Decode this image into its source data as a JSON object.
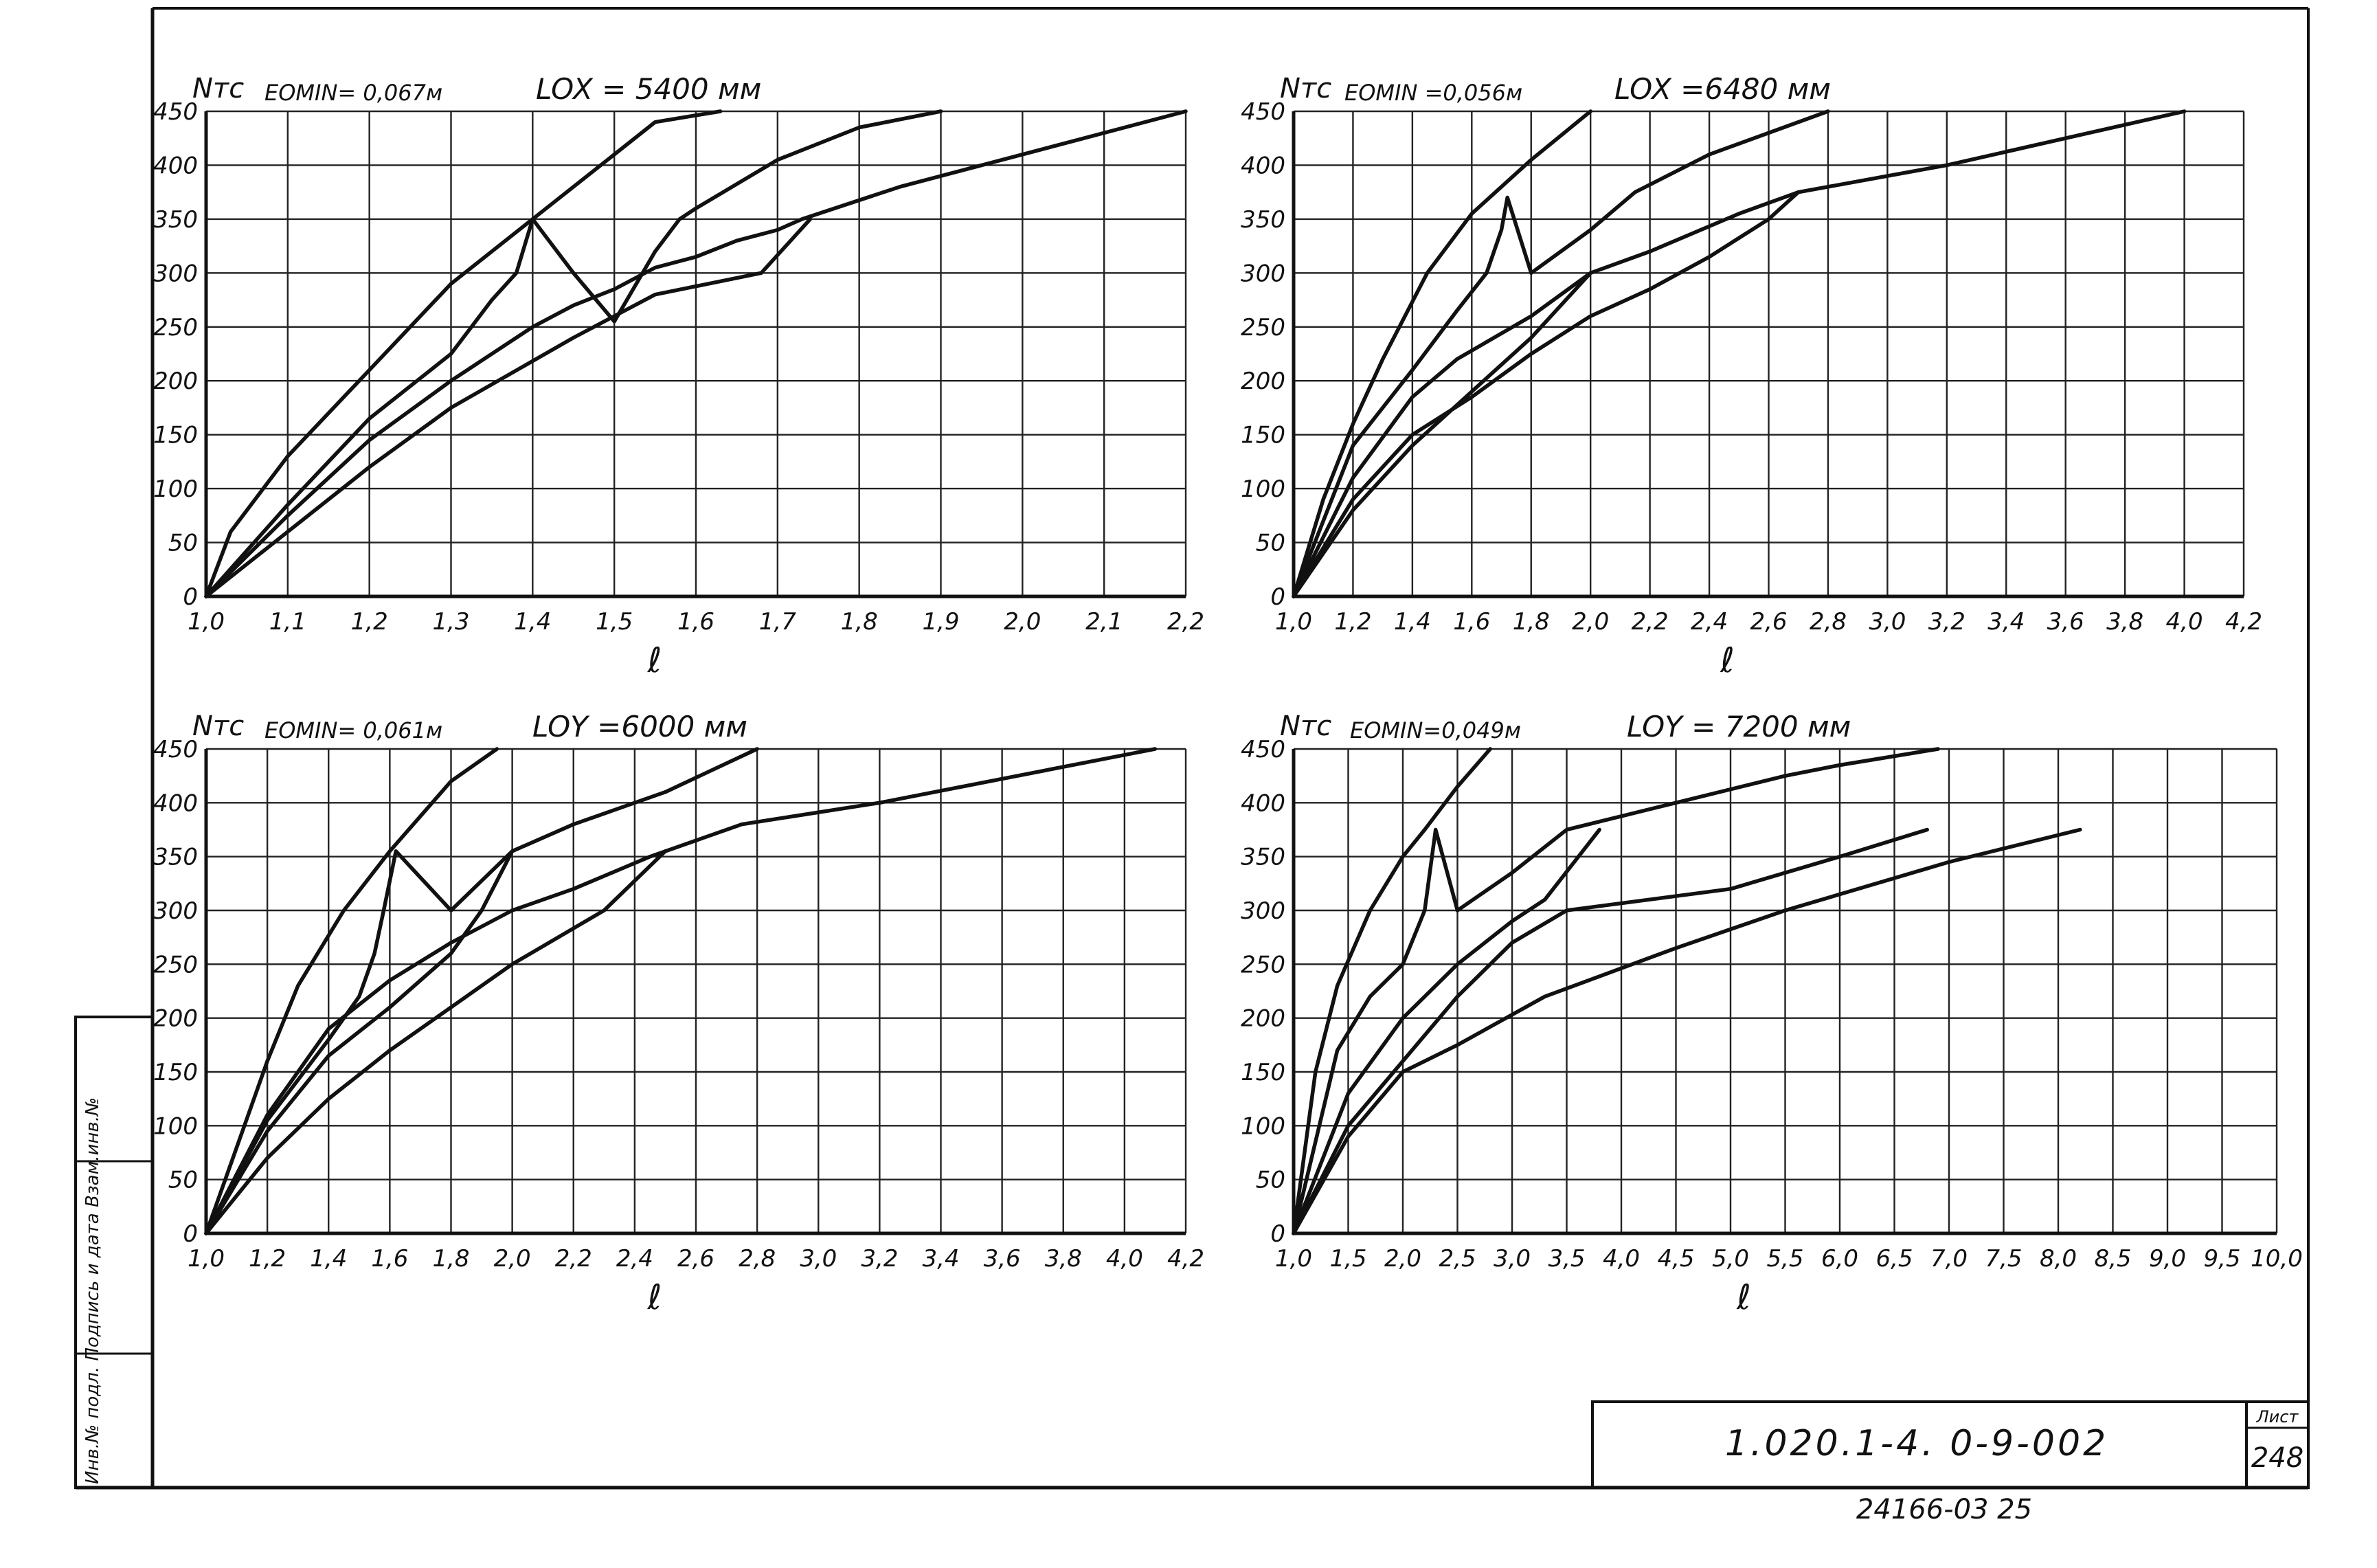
{
  "sheet": {
    "designation": "1.020.1-4.  0-9-002",
    "sheet_label": "Лист",
    "sheet_number": "248",
    "footer_number": "24166-03   25",
    "side_stamp": "Инв.№ подл.  Подпись и дата  Взам.инв.№"
  },
  "chart_data": [
    {
      "type": "line",
      "ylabel": "Nтс",
      "xlabel": "ℓ",
      "eomin": "EOMIN= 0,067м",
      "length": "LOX = 5400 мм",
      "x_ticks": [
        "1,0",
        "1,1",
        "1,2",
        "1,3",
        "1,4",
        "1,5",
        "1,6",
        "1,7",
        "1,8",
        "1,9",
        "2,0",
        "2,1",
        "2,2"
      ],
      "y_ticks": [
        "0",
        "50",
        "100",
        "150",
        "200",
        "250",
        "300",
        "350",
        "400",
        "450"
      ],
      "xlim": [
        1.0,
        2.2
      ],
      "ylim": [
        0,
        450
      ],
      "grid": true,
      "series": [
        {
          "x": [
            1.0,
            1.03,
            1.1,
            1.2,
            1.3,
            1.4,
            1.5,
            1.55,
            1.63
          ],
          "y": [
            0,
            60,
            130,
            210,
            290,
            350,
            410,
            440,
            450
          ]
        },
        {
          "x": [
            1.0,
            1.1,
            1.2,
            1.3,
            1.35,
            1.38,
            1.4,
            1.45,
            1.5,
            1.55,
            1.58,
            1.6,
            1.7,
            1.8,
            1.9
          ],
          "y": [
            0,
            85,
            165,
            225,
            275,
            300,
            350,
            300,
            255,
            320,
            350,
            360,
            405,
            435,
            450
          ]
        },
        {
          "x": [
            1.0,
            1.1,
            1.2,
            1.3,
            1.4,
            1.45,
            1.5,
            1.55,
            1.6,
            1.65,
            1.7,
            1.73,
            1.75,
            1.85,
            2.0,
            2.2
          ],
          "y": [
            0,
            75,
            145,
            200,
            250,
            270,
            285,
            305,
            315,
            330,
            340,
            350,
            355,
            380,
            410,
            450
          ]
        },
        {
          "x": [
            1.0,
            1.1,
            1.2,
            1.3,
            1.45,
            1.55,
            1.68,
            1.74
          ],
          "y": [
            0,
            60,
            120,
            175,
            240,
            280,
            300,
            350
          ]
        }
      ]
    },
    {
      "type": "line",
      "ylabel": "Nтс",
      "xlabel": "ℓ",
      "eomin": "EOMIN =0,056м",
      "length": "LOX =6480 мм",
      "x_ticks": [
        "1,0",
        "1,2",
        "1,4",
        "1,6",
        "1,8",
        "2,0",
        "2,2",
        "2,4",
        "2,6",
        "2,8",
        "3,0",
        "3,2",
        "3,4",
        "3,6",
        "3,8",
        "4,0",
        "4,2"
      ],
      "y_ticks": [
        "0",
        "50",
        "100",
        "150",
        "200",
        "250",
        "300",
        "350",
        "400",
        "450"
      ],
      "xlim": [
        1.0,
        4.2
      ],
      "ylim": [
        0,
        450
      ],
      "grid": true,
      "series": [
        {
          "x": [
            1.0,
            1.1,
            1.2,
            1.3,
            1.45,
            1.6,
            1.8,
            2.0
          ],
          "y": [
            0,
            90,
            160,
            220,
            300,
            355,
            405,
            450
          ]
        },
        {
          "x": [
            1.0,
            1.2,
            1.4,
            1.55,
            1.65,
            1.7,
            1.72,
            1.8,
            2.0,
            2.15,
            2.4,
            2.8
          ],
          "y": [
            0,
            140,
            210,
            265,
            300,
            340,
            370,
            300,
            340,
            375,
            410,
            450
          ]
        },
        {
          "x": [
            1.0,
            1.2,
            1.4,
            1.55,
            1.8,
            2.0,
            2.2,
            2.5,
            2.7,
            3.2,
            4.0
          ],
          "y": [
            0,
            110,
            185,
            220,
            260,
            300,
            320,
            355,
            375,
            400,
            450
          ]
        },
        {
          "x": [
            1.0,
            1.2,
            1.4,
            1.6,
            1.8,
            2.0,
            2.2,
            2.4,
            2.6,
            2.7
          ],
          "y": [
            0,
            90,
            150,
            185,
            225,
            260,
            285,
            315,
            350,
            375
          ]
        },
        {
          "x": [
            1.0,
            1.2,
            1.4,
            1.6,
            1.8,
            2.0
          ],
          "y": [
            0,
            80,
            140,
            190,
            240,
            300
          ]
        }
      ]
    },
    {
      "type": "line",
      "ylabel": "Nтс",
      "xlabel": "ℓ",
      "eomin": "EOMIN= 0,061м",
      "length": "LOY =6000 мм",
      "x_ticks": [
        "1,0",
        "1,2",
        "1,4",
        "1,6",
        "1,8",
        "2,0",
        "2,2",
        "2,4",
        "2,6",
        "2,8",
        "3,0",
        "3,2",
        "3,4",
        "3,6",
        "3,8",
        "4,0",
        "4,2"
      ],
      "y_ticks": [
        "0",
        "50",
        "100",
        "150",
        "200",
        "250",
        "300",
        "350",
        "400",
        "450"
      ],
      "xlim": [
        1.0,
        4.2
      ],
      "ylim": [
        0,
        450
      ],
      "grid": true,
      "series": [
        {
          "x": [
            1.0,
            1.1,
            1.2,
            1.3,
            1.45,
            1.6,
            1.8,
            1.95
          ],
          "y": [
            0,
            80,
            160,
            230,
            300,
            355,
            420,
            450
          ]
        },
        {
          "x": [
            1.0,
            1.2,
            1.4,
            1.5,
            1.55,
            1.58,
            1.62,
            1.8,
            2.0,
            2.2,
            2.5,
            2.8
          ],
          "y": [
            0,
            105,
            180,
            220,
            260,
            300,
            355,
            300,
            355,
            380,
            410,
            450
          ]
        },
        {
          "x": [
            1.0,
            1.2,
            1.4,
            1.6,
            1.8,
            2.0,
            2.2,
            2.45,
            2.75,
            3.2,
            4.1
          ],
          "y": [
            0,
            110,
            190,
            235,
            270,
            300,
            320,
            350,
            380,
            400,
            450
          ]
        },
        {
          "x": [
            1.0,
            1.2,
            1.4,
            1.6,
            1.8,
            1.9,
            2.0
          ],
          "y": [
            0,
            95,
            165,
            210,
            260,
            300,
            355
          ]
        },
        {
          "x": [
            1.0,
            1.2,
            1.4,
            1.6,
            1.8,
            2.0,
            2.3,
            2.5
          ],
          "y": [
            0,
            70,
            125,
            170,
            210,
            250,
            300,
            355
          ]
        }
      ]
    },
    {
      "type": "line",
      "ylabel": "Nтс",
      "xlabel": "ℓ",
      "eomin": "EOMIN=0,049м",
      "length": "LOY = 7200 мм",
      "x_ticks": [
        "1,0",
        "1,5",
        "2,0",
        "2,5",
        "3,0",
        "3,5",
        "4,0",
        "4,5",
        "5,0",
        "5,5",
        "6,0",
        "6,5",
        "7,0",
        "7,5",
        "8,0",
        "8,5",
        "9,0",
        "9,5",
        "10,0"
      ],
      "y_ticks": [
        "0",
        "50",
        "100",
        "150",
        "200",
        "250",
        "300",
        "350",
        "400",
        "450"
      ],
      "xlim": [
        1.0,
        10.0
      ],
      "ylim": [
        0,
        450
      ],
      "grid": true,
      "series": [
        {
          "x": [
            1.0,
            1.2,
            1.4,
            1.7,
            2.0,
            2.2,
            2.5,
            2.8
          ],
          "y": [
            0,
            150,
            230,
            300,
            350,
            375,
            415,
            450
          ]
        },
        {
          "x": [
            1.0,
            1.4,
            1.7,
            2.0,
            2.2,
            2.3,
            2.5,
            3.0,
            3.5,
            4.5,
            5.5,
            6.0,
            6.9
          ],
          "y": [
            0,
            170,
            220,
            250,
            300,
            375,
            300,
            335,
            375,
            400,
            425,
            435,
            450
          ]
        },
        {
          "x": [
            1.0,
            1.5,
            2.0,
            2.5,
            3.0,
            3.3,
            3.8
          ],
          "y": [
            0,
            130,
            200,
            250,
            290,
            310,
            375
          ]
        },
        {
          "x": [
            1.0,
            1.5,
            2.0,
            2.5,
            3.0,
            3.5,
            5.0,
            6.0,
            6.8
          ],
          "y": [
            0,
            100,
            160,
            220,
            270,
            300,
            320,
            350,
            375
          ]
        },
        {
          "x": [
            1.0,
            1.5,
            2.0,
            2.5,
            3.3,
            4.5,
            5.5,
            7.0,
            8.2
          ],
          "y": [
            0,
            90,
            150,
            175,
            220,
            265,
            300,
            345,
            375
          ]
        }
      ]
    }
  ]
}
